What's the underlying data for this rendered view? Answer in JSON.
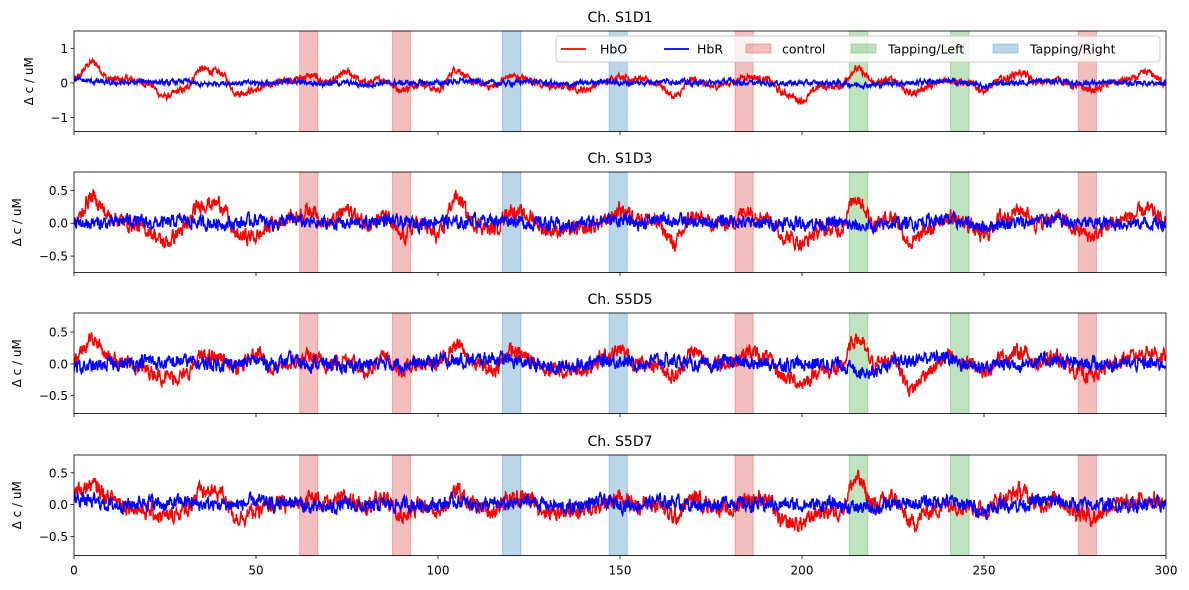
{
  "chart_data": {
    "type": "line",
    "xlim": [
      0,
      300
    ],
    "xticks": [
      0,
      50,
      100,
      150,
      200,
      250,
      300
    ],
    "colors": {
      "HbO": "#ff0000",
      "HbR": "#0000ff",
      "control": "#d62728",
      "Tapping/Left": "#2ca02c",
      "Tapping/Right": "#1f77b4"
    },
    "legend": {
      "placement": "top-right",
      "entries": [
        {
          "label": "HbO",
          "kind": "line",
          "color": "#ff0000"
        },
        {
          "label": "HbR",
          "kind": "line",
          "color": "#0000ff"
        },
        {
          "label": "control",
          "kind": "patch",
          "color": "#d62728"
        },
        {
          "label": "Tapping/Left",
          "kind": "patch",
          "color": "#2ca02c"
        },
        {
          "label": "Tapping/Right",
          "kind": "patch",
          "color": "#1f77b4"
        }
      ]
    },
    "events": [
      {
        "label": "control",
        "start": 62,
        "end": 67
      },
      {
        "label": "control",
        "start": 87.5,
        "end": 92.5
      },
      {
        "label": "Tapping/Right",
        "start": 117.7,
        "end": 122.8
      },
      {
        "label": "Tapping/Right",
        "start": 147,
        "end": 152
      },
      {
        "label": "control",
        "start": 181.6,
        "end": 186.6
      },
      {
        "label": "Tapping/Left",
        "start": 213,
        "end": 218.1
      },
      {
        "label": "Tapping/Left",
        "start": 240.8,
        "end": 245.9
      },
      {
        "label": "control",
        "start": 275.9,
        "end": 280.9
      }
    ],
    "sample_interval_s": 5,
    "subplots": [
      {
        "title": "Ch. S1D1",
        "ylabel": "Δ c / uM",
        "ylim": [
          -1.4,
          1.5
        ],
        "yticks": [
          -1,
          0,
          1
        ],
        "ytick_labels": [
          "−1",
          "0",
          "1"
        ],
        "series": [
          {
            "name": "HbO",
            "values": [
              0.1,
              0.6,
              0.1,
              0.1,
              0.0,
              -0.4,
              -0.2,
              0.4,
              0.3,
              -0.3,
              -0.2,
              0.0,
              0.1,
              0.2,
              0.0,
              0.3,
              0.0,
              0.1,
              -0.2,
              0.0,
              -0.2,
              0.4,
              0.0,
              -0.1,
              0.2,
              0.1,
              -0.1,
              -0.1,
              -0.2,
              0.0,
              0.2,
              0.1,
              0.0,
              -0.4,
              0.1,
              -0.1,
              0.0,
              0.2,
              0.1,
              -0.3,
              -0.5,
              -0.1,
              -0.1,
              0.4,
              0.0,
              0.1,
              -0.3,
              -0.1,
              0.1,
              0.0,
              -0.2,
              0.1,
              0.3,
              0.0,
              0.1,
              -0.1,
              -0.2,
              0.0,
              0.1,
              0.3,
              0.0
            ]
          },
          {
            "name": "HbR",
            "values": [
              0.1,
              0.05,
              0.0,
              0.0,
              0.05,
              0.0,
              0.05,
              -0.05,
              0.0,
              0.0,
              0.0,
              0.0,
              0.05,
              0.0,
              0.0,
              0.0,
              -0.05,
              0.0,
              0.0,
              0.0,
              0.0,
              0.05,
              0.05,
              0.0,
              0.0,
              0.05,
              0.0,
              -0.05,
              0.0,
              0.05,
              0.0,
              0.0,
              0.05,
              0.05,
              0.0,
              0.0,
              0.05,
              0.0,
              0.0,
              0.0,
              0.0,
              0.0,
              0.0,
              -0.05,
              -0.05,
              0.0,
              0.0,
              0.05,
              0.05,
              0.0,
              -0.1,
              0.0,
              0.0,
              0.05,
              0.05,
              0.0,
              0.0,
              0.0,
              0.0,
              0.0,
              0.0
            ]
          }
        ]
      },
      {
        "title": "Ch. S1D3",
        "ylabel": "Δ c / uM",
        "ylim": [
          -0.75,
          0.78
        ],
        "yticks": [
          -0.5,
          0,
          0.5
        ],
        "ytick_labels": [
          "−0.5",
          "0.0",
          "0.5"
        ],
        "series": [
          {
            "name": "HbO",
            "values": [
              0.0,
              0.4,
              0.1,
              0.0,
              -0.1,
              -0.3,
              -0.1,
              0.3,
              0.3,
              -0.2,
              -0.2,
              0.0,
              0.1,
              0.2,
              0.0,
              0.2,
              0.0,
              0.1,
              -0.2,
              0.0,
              -0.2,
              0.4,
              0.0,
              -0.1,
              0.2,
              0.1,
              -0.1,
              -0.1,
              -0.1,
              0.0,
              0.2,
              0.1,
              0.0,
              -0.3,
              0.1,
              0.0,
              0.0,
              0.2,
              0.1,
              -0.2,
              -0.3,
              -0.1,
              -0.1,
              0.4,
              0.0,
              0.1,
              -0.3,
              -0.1,
              0.1,
              0.0,
              -0.2,
              0.1,
              0.2,
              0.0,
              0.1,
              -0.1,
              -0.2,
              0.0,
              0.1,
              0.2,
              0.0
            ]
          },
          {
            "name": "HbR",
            "values": [
              0.0,
              0.0,
              0.0,
              0.05,
              0.0,
              0.0,
              0.05,
              0.0,
              0.0,
              0.0,
              0.05,
              0.0,
              0.05,
              0.0,
              0.0,
              0.0,
              0.0,
              0.05,
              0.0,
              0.0,
              0.05,
              0.0,
              0.05,
              0.05,
              0.05,
              0.0,
              0.0,
              -0.05,
              0.0,
              0.05,
              0.05,
              0.0,
              0.05,
              0.05,
              0.0,
              0.0,
              0.05,
              0.0,
              0.0,
              0.0,
              0.0,
              0.0,
              0.0,
              -0.05,
              -0.05,
              0.0,
              0.0,
              0.05,
              0.05,
              0.0,
              -0.05,
              0.0,
              0.0,
              0.05,
              0.05,
              0.0,
              0.0,
              0.0,
              0.0,
              0.0,
              0.0
            ]
          }
        ]
      },
      {
        "title": "Ch. S5D5",
        "ylabel": "Δ c / uM",
        "ylim": [
          -0.78,
          0.8
        ],
        "yticks": [
          -0.5,
          0,
          0.5
        ],
        "ytick_labels": [
          "−0.5",
          "0.0",
          "0.5"
        ],
        "series": [
          {
            "name": "HbO",
            "values": [
              0.1,
              0.4,
              0.1,
              0.0,
              -0.1,
              -0.2,
              -0.2,
              0.1,
              0.1,
              -0.1,
              0.2,
              -0.1,
              0.0,
              0.1,
              0.0,
              0.1,
              -0.1,
              0.1,
              -0.1,
              0.0,
              0.0,
              0.3,
              0.0,
              -0.1,
              0.2,
              0.1,
              -0.1,
              -0.1,
              -0.1,
              0.1,
              0.2,
              0.0,
              0.0,
              -0.2,
              0.2,
              0.0,
              0.0,
              0.2,
              0.1,
              -0.2,
              -0.3,
              -0.1,
              -0.1,
              0.4,
              0.0,
              0.1,
              -0.4,
              -0.1,
              0.1,
              0.0,
              -0.1,
              0.1,
              0.2,
              0.0,
              0.1,
              -0.1,
              -0.2,
              0.0,
              0.1,
              0.2,
              0.1
            ]
          },
          {
            "name": "HbR",
            "values": [
              -0.05,
              -0.05,
              0.0,
              0.0,
              0.05,
              0.0,
              0.05,
              0.0,
              0.0,
              0.0,
              0.05,
              0.0,
              0.05,
              0.0,
              0.0,
              -0.05,
              0.0,
              0.0,
              0.0,
              0.0,
              0.05,
              0.05,
              0.05,
              0.1,
              0.05,
              0.0,
              -0.05,
              -0.05,
              0.0,
              0.05,
              0.05,
              0.0,
              0.05,
              0.05,
              0.0,
              -0.05,
              0.05,
              0.0,
              0.0,
              0.0,
              0.0,
              0.0,
              0.0,
              -0.1,
              -0.1,
              0.0,
              0.05,
              0.1,
              0.1,
              0.0,
              -0.05,
              0.0,
              0.0,
              0.05,
              0.05,
              0.0,
              0.0,
              0.0,
              0.0,
              0.0,
              0.0
            ]
          }
        ]
      },
      {
        "title": "Ch. S5D7",
        "ylabel": "Δ c / uM",
        "ylim": [
          -0.8,
          0.78
        ],
        "yticks": [
          -0.5,
          0,
          0.5
        ],
        "ytick_labels": [
          "−0.5",
          "0.0",
          "0.5"
        ],
        "series": [
          {
            "name": "HbO",
            "values": [
              0.2,
              0.3,
              0.1,
              0.0,
              -0.1,
              -0.2,
              -0.1,
              0.2,
              0.2,
              -0.2,
              -0.1,
              0.0,
              0.0,
              0.1,
              0.0,
              0.1,
              0.0,
              0.1,
              -0.2,
              0.0,
              -0.1,
              0.2,
              0.0,
              -0.1,
              0.1,
              0.1,
              -0.1,
              -0.1,
              -0.1,
              0.0,
              0.1,
              0.0,
              0.0,
              -0.2,
              0.1,
              0.0,
              -0.1,
              0.1,
              0.1,
              -0.3,
              -0.3,
              -0.1,
              -0.1,
              0.4,
              0.0,
              0.1,
              -0.3,
              -0.1,
              0.0,
              0.0,
              -0.1,
              0.1,
              0.2,
              0.0,
              0.1,
              -0.1,
              -0.2,
              0.0,
              0.0,
              0.1,
              0.0
            ]
          },
          {
            "name": "HbR",
            "values": [
              0.1,
              0.05,
              0.0,
              0.0,
              0.05,
              0.0,
              0.05,
              0.0,
              0.0,
              0.0,
              0.05,
              0.0,
              0.05,
              -0.05,
              -0.05,
              0.0,
              -0.05,
              0.0,
              0.0,
              0.0,
              0.0,
              0.05,
              0.0,
              0.0,
              0.0,
              0.05,
              0.0,
              -0.05,
              0.0,
              0.05,
              0.0,
              0.0,
              0.05,
              0.05,
              0.0,
              0.0,
              0.05,
              0.0,
              0.0,
              0.0,
              0.0,
              0.0,
              0.0,
              -0.05,
              -0.05,
              0.0,
              0.0,
              0.05,
              0.05,
              0.0,
              -0.1,
              0.0,
              0.0,
              0.05,
              0.05,
              0.0,
              0.0,
              0.0,
              0.0,
              0.0,
              0.0
            ]
          }
        ]
      }
    ]
  }
}
